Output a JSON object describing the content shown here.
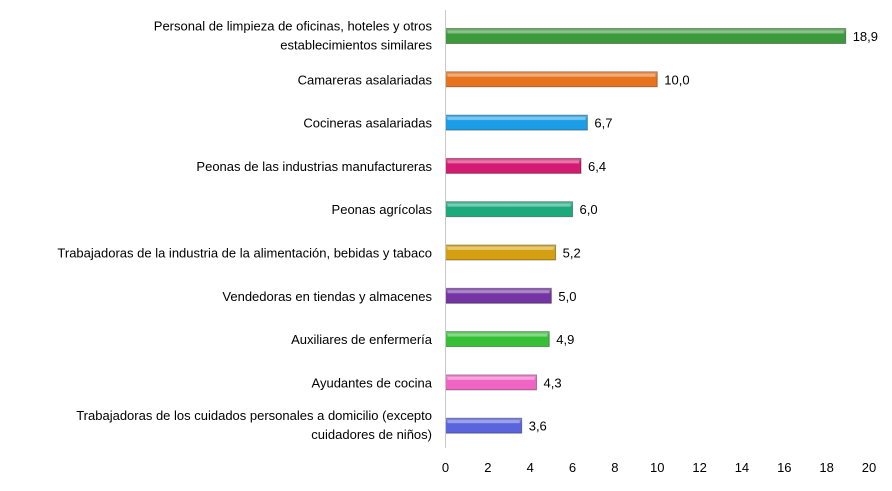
{
  "chart_data": {
    "type": "bar",
    "orientation": "horizontal",
    "title": "",
    "xlabel": "",
    "ylabel": "",
    "xlim": [
      0,
      20
    ],
    "xticks": [
      0,
      2,
      4,
      6,
      8,
      10,
      12,
      14,
      16,
      18,
      20
    ],
    "grid": false,
    "categories": [
      [
        "Personal de limpieza de oficinas, hoteles y otros",
        "establecimientos similares"
      ],
      [
        "Camareras asalariadas"
      ],
      [
        "Cocineras asalariadas"
      ],
      [
        "Peonas de las industrias manufactureras"
      ],
      [
        "Peonas agrícolas"
      ],
      [
        "Trabajadoras de la industria de la alimentación, bebidas y tabaco"
      ],
      [
        "Vendedoras en tiendas y almacenes"
      ],
      [
        "Auxiliares de enfermería"
      ],
      [
        "Ayudantes de cocina"
      ],
      [
        "Trabajadoras de los cuidados personales a domicilio (excepto",
        "cuidadores de niños)"
      ]
    ],
    "values": [
      18.9,
      10.0,
      6.7,
      6.4,
      6.0,
      5.2,
      5.0,
      4.9,
      4.3,
      3.6
    ],
    "data_labels": [
      "18,9",
      "10,0",
      "6,7",
      "6,4",
      "6,0",
      "5,2",
      "5,0",
      "4,9",
      "4,3",
      "3,6"
    ],
    "colors": [
      "#3c9a3c",
      "#e8731e",
      "#1c9ee6",
      "#d41a72",
      "#1caa7c",
      "#d4a012",
      "#7434a4",
      "#36c036",
      "#f064c4",
      "#5a64dc"
    ]
  }
}
